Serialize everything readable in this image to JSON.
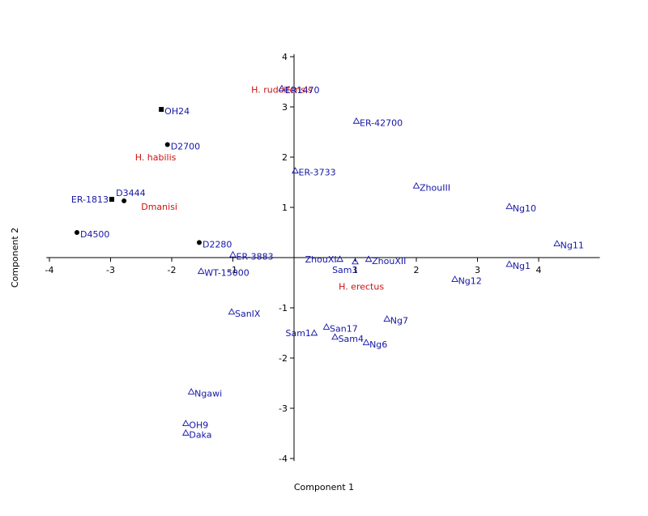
{
  "chart_data": {
    "type": "scatter",
    "xlabel": "Component 1",
    "ylabel": "Component 2",
    "xlim": [
      -4.05,
      5.0
    ],
    "ylim": [
      -4.05,
      4.05
    ],
    "x_ticks": [
      -4,
      -3,
      -2,
      -1,
      1,
      2,
      3,
      4
    ],
    "y_ticks": [
      -4,
      -3,
      -2,
      -1,
      1,
      2,
      3,
      4
    ],
    "grid": false,
    "colors": {
      "point_label": "#1515a8",
      "group_label": "#cc1111",
      "filled_marker": "#000000"
    },
    "points": [
      {
        "label": "OH24",
        "x": -2.17,
        "y": 2.95,
        "marker": "square"
      },
      {
        "label": "D2700",
        "x": -2.07,
        "y": 2.25,
        "marker": "circle"
      },
      {
        "label": "D3444",
        "x": -2.78,
        "y": 1.13,
        "marker": "circle",
        "label_pos": "above-right"
      },
      {
        "label": "ER-1813",
        "x": -2.98,
        "y": 1.16,
        "marker": "square",
        "label_pos": "left"
      },
      {
        "label": "D4500",
        "x": -3.55,
        "y": 0.5,
        "marker": "circle"
      },
      {
        "label": "D2280",
        "x": -1.55,
        "y": 0.3,
        "marker": "circle"
      },
      {
        "label": "ER-3883",
        "x": -1.0,
        "y": 0.06,
        "marker": "triangle"
      },
      {
        "label": "WT-15000",
        "x": -1.52,
        "y": -0.27,
        "marker": "triangle"
      },
      {
        "label": "SanIX",
        "x": -1.02,
        "y": -1.08,
        "marker": "triangle"
      },
      {
        "label": "Ngawi",
        "x": -1.68,
        "y": -2.67,
        "marker": "triangle"
      },
      {
        "label": "OH9",
        "x": -1.77,
        "y": -3.3,
        "marker": "triangle"
      },
      {
        "label": "Daka",
        "x": -1.77,
        "y": -3.49,
        "marker": "triangle"
      },
      {
        "label": "ER1470",
        "x": -0.2,
        "y": 3.37,
        "marker": "triangle"
      },
      {
        "label": "ER-42700",
        "x": 1.02,
        "y": 2.72,
        "marker": "triangle"
      },
      {
        "label": "ER-3733",
        "x": 0.02,
        "y": 1.73,
        "marker": "triangle"
      },
      {
        "label": "ZhouIII",
        "x": 2.0,
        "y": 1.43,
        "marker": "triangle"
      },
      {
        "label": "Ng10",
        "x": 3.52,
        "y": 1.02,
        "marker": "triangle"
      },
      {
        "label": "Ng11",
        "x": 4.3,
        "y": 0.28,
        "marker": "triangle"
      },
      {
        "label": "ZhouXI",
        "x": 0.75,
        "y": -0.03,
        "marker": "triangle",
        "label_pos": "left"
      },
      {
        "label": "Sam3",
        "x": 1.0,
        "y": -0.08,
        "marker": "triangle",
        "label_pos": "below-left"
      },
      {
        "label": "ZhouXII",
        "x": 1.22,
        "y": -0.03,
        "marker": "triangle"
      },
      {
        "label": "Ng1",
        "x": 3.52,
        "y": -0.13,
        "marker": "triangle"
      },
      {
        "label": "Ng12",
        "x": 2.63,
        "y": -0.43,
        "marker": "triangle"
      },
      {
        "label": "Ng7",
        "x": 1.52,
        "y": -1.22,
        "marker": "triangle"
      },
      {
        "label": "San17",
        "x": 0.53,
        "y": -1.38,
        "marker": "triangle"
      },
      {
        "label": "Sam1",
        "x": 0.33,
        "y": -1.5,
        "marker": "triangle",
        "label_pos": "left"
      },
      {
        "label": "Sam4",
        "x": 0.67,
        "y": -1.58,
        "marker": "triangle"
      },
      {
        "label": "Ng6",
        "x": 1.18,
        "y": -1.69,
        "marker": "triangle"
      }
    ],
    "annotations": [
      {
        "text": "H. rudolfensis",
        "x": -0.7,
        "y": 3.35
      },
      {
        "text": "H. habilis",
        "x": -2.6,
        "y": 2.0
      },
      {
        "text": "Dmanisi",
        "x": -2.5,
        "y": 1.02
      },
      {
        "text": "H. erectus",
        "x": 0.73,
        "y": -0.57
      }
    ]
  }
}
